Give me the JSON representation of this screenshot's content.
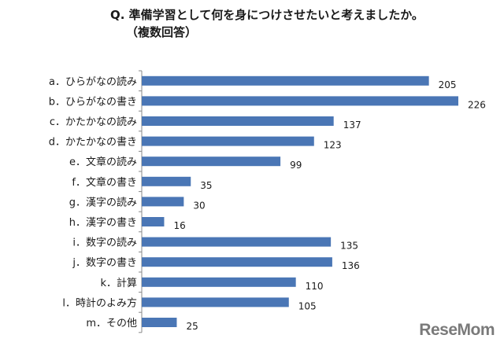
{
  "title_line1": "Q. 準備学習として何を身につけさせたいと考えましたか。",
  "title_line2": "（複数回答）",
  "logo": "ReseMom",
  "bar_color": "#4a76b5",
  "chart_data": {
    "type": "bar",
    "orientation": "horizontal",
    "title": "Q. 準備学習として何を身につけさせたいと考えましたか。（複数回答）",
    "categories": [
      "a．ひらがなの読み",
      "b．ひらがなの書き",
      "c．かたかなの読み",
      "d．かたかなの書き",
      "e．文章の読み",
      "f．文章の書き",
      "g．漢字の読み",
      "h．漢字の書き",
      "i．数字の読み",
      "j．数字の書き",
      "k．計算",
      "l．時計のよみ方",
      "m．その他"
    ],
    "values": [
      205,
      226,
      137,
      123,
      99,
      35,
      30,
      16,
      135,
      136,
      110,
      105,
      25
    ],
    "xlim": [
      0,
      226
    ],
    "grid": false,
    "legend": "none"
  }
}
